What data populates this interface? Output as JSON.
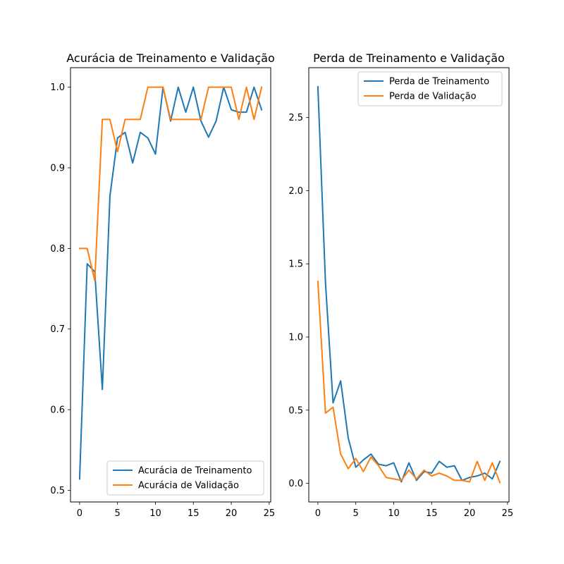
{
  "chart_data": [
    {
      "type": "line",
      "title": "Acurácia de Treinamento e Validação",
      "xlabel": "",
      "ylabel": "",
      "xlim": [
        -1.2,
        25.2
      ],
      "ylim": [
        0.4855,
        1.0242
      ],
      "xticks": [
        0,
        5,
        10,
        15,
        20,
        25
      ],
      "xtick_labels": [
        "0",
        "5",
        "10",
        "15",
        "20",
        "25"
      ],
      "yticks": [
        0.5,
        0.6,
        0.7,
        0.8,
        0.9,
        1.0
      ],
      "ytick_labels": [
        "0.5",
        "0.6",
        "0.7",
        "0.8",
        "0.9",
        "1.0"
      ],
      "grid": false,
      "legend_position": "lower-right",
      "x": [
        0,
        1,
        2,
        3,
        4,
        5,
        6,
        7,
        8,
        9,
        10,
        11,
        12,
        13,
        14,
        15,
        16,
        17,
        18,
        19,
        20,
        21,
        22,
        23,
        24
      ],
      "series": [
        {
          "name": "Acurácia de Treinamento",
          "color": "#1f77b4",
          "values": [
            0.514,
            0.781,
            0.771,
            0.625,
            0.865,
            0.937,
            0.944,
            0.906,
            0.944,
            0.937,
            0.917,
            1.0,
            0.958,
            1.0,
            0.969,
            1.0,
            0.958,
            0.938,
            0.958,
            1.0,
            0.972,
            0.969,
            0.969,
            1.0,
            0.972
          ]
        },
        {
          "name": "Acurácia de Validação",
          "color": "#ff7f0e",
          "values": [
            0.8,
            0.8,
            0.76,
            0.96,
            0.96,
            0.92,
            0.96,
            0.96,
            0.96,
            1.0,
            1.0,
            1.0,
            0.96,
            0.96,
            0.96,
            0.96,
            0.96,
            1.0,
            1.0,
            1.0,
            1.0,
            0.96,
            1.0,
            0.96,
            1.0
          ]
        }
      ]
    },
    {
      "type": "line",
      "title": "Perda de Treinamento e Validação",
      "xlabel": "",
      "ylabel": "",
      "xlim": [
        -1.2,
        25.2
      ],
      "ylim": [
        -0.1275,
        2.8407
      ],
      "xticks": [
        0,
        5,
        10,
        15,
        20,
        25
      ],
      "xtick_labels": [
        "0",
        "5",
        "10",
        "15",
        "20",
        "25"
      ],
      "yticks": [
        0.0,
        0.5,
        1.0,
        1.5,
        2.0,
        2.5
      ],
      "ytick_labels": [
        "0.0",
        "0.5",
        "1.0",
        "1.5",
        "2.0",
        "2.5"
      ],
      "grid": false,
      "legend_position": "upper-right",
      "x": [
        0,
        1,
        2,
        3,
        4,
        5,
        6,
        7,
        8,
        9,
        10,
        11,
        12,
        13,
        14,
        15,
        16,
        17,
        18,
        19,
        20,
        21,
        22,
        23,
        24
      ],
      "series": [
        {
          "name": "Perda de Treinamento",
          "color": "#1f77b4",
          "values": [
            2.71,
            1.37,
            0.55,
            0.7,
            0.31,
            0.11,
            0.16,
            0.2,
            0.13,
            0.12,
            0.14,
            0.01,
            0.14,
            0.02,
            0.08,
            0.07,
            0.15,
            0.11,
            0.12,
            0.02,
            0.04,
            0.05,
            0.07,
            0.03,
            0.15
          ]
        },
        {
          "name": "Perda de Validação",
          "color": "#ff7f0e",
          "values": [
            1.38,
            0.48,
            0.52,
            0.2,
            0.1,
            0.17,
            0.08,
            0.18,
            0.12,
            0.04,
            0.03,
            0.02,
            0.09,
            0.03,
            0.09,
            0.05,
            0.07,
            0.05,
            0.02,
            0.02,
            0.01,
            0.15,
            0.02,
            0.14,
            0.005
          ]
        }
      ]
    }
  ]
}
